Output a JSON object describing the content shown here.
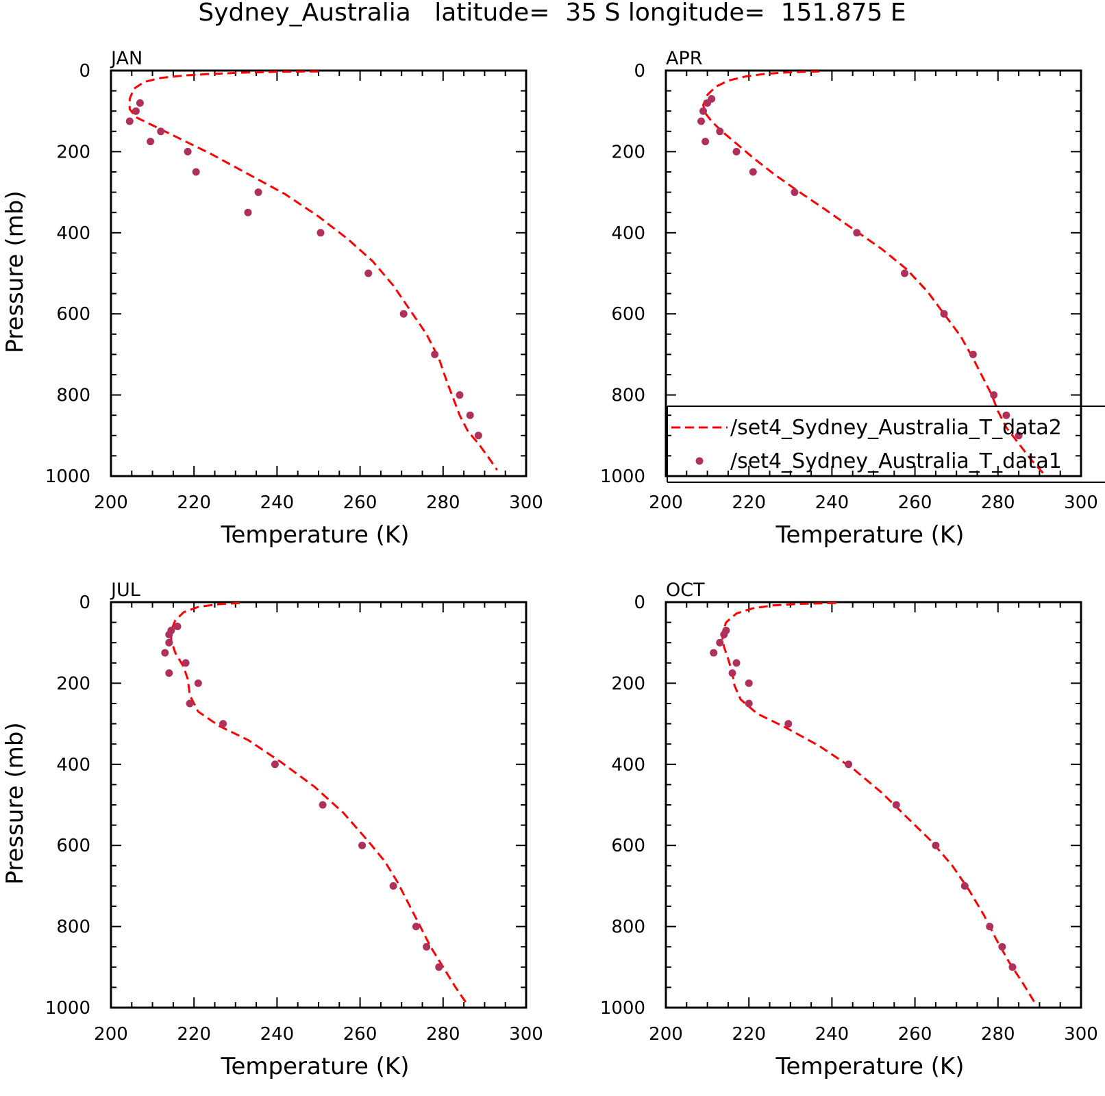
{
  "title": "Sydney_Australia   latitude=  35 S longitude=  151.875 E",
  "colors": {
    "model_line": "#ff0000",
    "obs_points": "#b0305c",
    "axis": "#000000"
  },
  "legend": {
    "placement": "inside APR panel, lower part",
    "line_label": "/set4_Sydney_Australia_T_data2",
    "marker_label": "/set4_Sydney_Australia_T_data1"
  },
  "chart_data": [
    {
      "type": "line",
      "panel": "JAN",
      "xlabel": "Temperature (K)",
      "ylabel": "Pressure (mb)",
      "xlim": [
        200,
        300
      ],
      "ylim": [
        1000,
        0
      ],
      "y_inverted": true,
      "xticks": [
        "200",
        "220",
        "240",
        "260",
        "280",
        "300"
      ],
      "yticks": [
        "0",
        "200",
        "400",
        "600",
        "800",
        "1000"
      ],
      "series": [
        {
          "name": "/set4_Sydney_Australia_T_data2",
          "style": "dashed",
          "x": [
            250,
            240,
            232,
            225,
            218,
            212,
            208,
            205.5,
            204.5,
            204.5,
            206,
            210,
            216,
            224,
            233,
            242,
            250,
            257,
            263,
            268,
            272,
            276,
            279,
            281,
            282.5,
            284,
            286,
            288.5,
            291,
            293
          ],
          "y": [
            2,
            3,
            5,
            8,
            12,
            18,
            28,
            45,
            70,
            95,
            115,
            135,
            165,
            205,
            255,
            305,
            360,
            415,
            470,
            530,
            590,
            650,
            710,
            770,
            810,
            850,
            890,
            920,
            955,
            985
          ]
        },
        {
          "name": "/set4_Sydney_Australia_T_data1",
          "style": "markers",
          "x": [
            207,
            206,
            204.5,
            212,
            209.5,
            218.5,
            220.5,
            235.5,
            233,
            250.5,
            262,
            270.5,
            278,
            284,
            286.5,
            288.5
          ],
          "y": [
            80,
            100,
            125,
            150,
            175,
            200,
            250,
            300,
            350,
            400,
            500,
            600,
            700,
            800,
            850,
            900
          ]
        }
      ]
    },
    {
      "type": "line",
      "panel": "APR",
      "xlabel": "Temperature (K)",
      "ylabel": "",
      "xlim": [
        200,
        300
      ],
      "ylim": [
        1000,
        0
      ],
      "y_inverted": true,
      "xticks": [
        "200",
        "220",
        "240",
        "260",
        "280",
        "300"
      ],
      "yticks": [
        "0",
        "200",
        "400",
        "600",
        "800",
        "1000"
      ],
      "series": [
        {
          "name": "/set4_Sydney_Australia_T_data2",
          "style": "dashed",
          "x": [
            237,
            230,
            224,
            219,
            215,
            212,
            210,
            209,
            209.5,
            211,
            213.5,
            217,
            221,
            226,
            231.5,
            238,
            245,
            252,
            258,
            263,
            267,
            271,
            274,
            276.5,
            278.5,
            280,
            282,
            285,
            288,
            291.5
          ],
          "y": [
            2,
            4,
            8,
            15,
            25,
            40,
            60,
            85,
            105,
            125,
            150,
            180,
            215,
            255,
            295,
            340,
            390,
            440,
            490,
            545,
            600,
            655,
            710,
            760,
            800,
            840,
            880,
            920,
            960,
            1000
          ]
        },
        {
          "name": "/set4_Sydney_Australia_T_data1",
          "style": "markers",
          "x": [
            211,
            210,
            209,
            208.5,
            213,
            209.5,
            217,
            221,
            231,
            246,
            257.5,
            267,
            274,
            279,
            282,
            285
          ],
          "y": [
            70,
            80,
            100,
            125,
            150,
            175,
            200,
            250,
            300,
            400,
            500,
            600,
            700,
            800,
            850,
            900
          ]
        }
      ]
    },
    {
      "type": "line",
      "panel": "JUL",
      "xlabel": "Temperature (K)",
      "ylabel": "Pressure (mb)",
      "xlim": [
        200,
        300
      ],
      "ylim": [
        1000,
        0
      ],
      "y_inverted": true,
      "xticks": [
        "200",
        "220",
        "240",
        "260",
        "280",
        "300"
      ],
      "yticks": [
        "0",
        "200",
        "400",
        "600",
        "800",
        "1000"
      ],
      "series": [
        {
          "name": "/set4_Sydney_Australia_T_data2",
          "style": "dashed",
          "x": [
            231,
            226,
            221,
            217.5,
            215.5,
            214.5,
            214.5,
            215.5,
            217.5,
            218.5,
            219,
            221,
            226,
            233,
            241,
            249,
            256,
            262,
            266,
            269,
            272,
            274.5,
            277,
            280,
            283,
            286
          ],
          "y": [
            2,
            5,
            12,
            25,
            45,
            70,
            95,
            125,
            160,
            190,
            230,
            270,
            305,
            340,
            395,
            455,
            520,
            590,
            640,
            690,
            750,
            800,
            850,
            900,
            950,
            995
          ]
        },
        {
          "name": "/set4_Sydney_Australia_T_data1",
          "style": "markers",
          "x": [
            216,
            214.5,
            214,
            214,
            213,
            218,
            214,
            221,
            219,
            227,
            239.5,
            251,
            260.5,
            268,
            273.5,
            276,
            279
          ],
          "y": [
            60,
            70,
            80,
            100,
            125,
            150,
            175,
            200,
            250,
            300,
            400,
            500,
            600,
            700,
            800,
            850,
            900
          ]
        }
      ]
    },
    {
      "type": "line",
      "panel": "OCT",
      "xlabel": "Temperature (K)",
      "ylabel": "",
      "xlim": [
        200,
        300
      ],
      "ylim": [
        1000,
        0
      ],
      "y_inverted": true,
      "xticks": [
        "200",
        "220",
        "240",
        "260",
        "280",
        "300"
      ],
      "yticks": [
        "0",
        "200",
        "400",
        "600",
        "800",
        "1000"
      ],
      "series": [
        {
          "name": "/set4_Sydney_Australia_T_data2",
          "style": "dashed",
          "x": [
            241,
            233,
            226,
            221,
            217,
            214.5,
            213.5,
            214,
            215,
            216,
            216.5,
            218,
            222,
            229,
            237,
            245,
            252,
            258,
            264,
            269,
            273,
            276.5,
            279.5,
            282.5,
            286,
            289
          ],
          "y": [
            2,
            4,
            8,
            15,
            28,
            50,
            80,
            110,
            140,
            175,
            205,
            240,
            275,
            310,
            355,
            410,
            470,
            530,
            590,
            650,
            710,
            770,
            830,
            885,
            940,
            990
          ]
        },
        {
          "name": "/set4_Sydney_Australia_T_data1",
          "style": "markers",
          "x": [
            214.5,
            214,
            213,
            211.5,
            217,
            216,
            220,
            220,
            229.5,
            244,
            255.5,
            265,
            272,
            278,
            281,
            283.5
          ],
          "y": [
            70,
            80,
            100,
            125,
            150,
            175,
            200,
            250,
            300,
            400,
            500,
            600,
            700,
            800,
            850,
            900
          ]
        }
      ]
    }
  ]
}
